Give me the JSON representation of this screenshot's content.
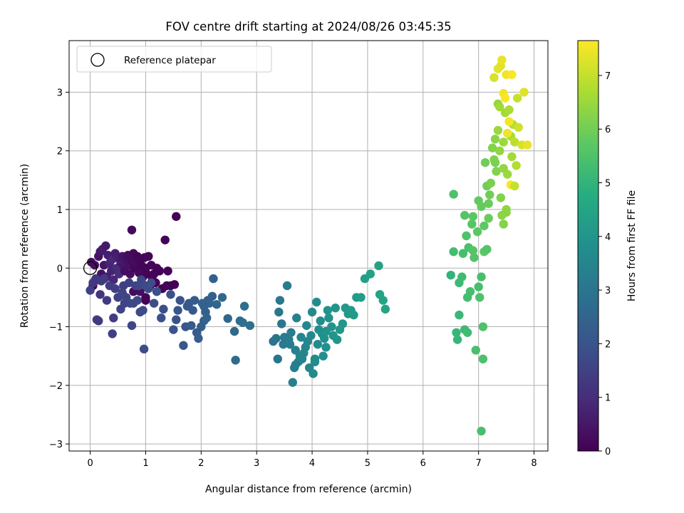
{
  "chart_data": {
    "type": "scatter",
    "title": "FOV centre drift starting at 2024/08/26 03:45:35",
    "xlabel": "Angular distance from reference (arcmin)",
    "ylabel": "Rotation from reference (arcmin)",
    "xlim": [
      -0.38,
      8.25
    ],
    "ylim": [
      -3.12,
      3.88
    ],
    "xticks": [
      0,
      1,
      2,
      3,
      4,
      5,
      6,
      7,
      8
    ],
    "yticks": [
      -3,
      -2,
      -1,
      0,
      1,
      2,
      3
    ],
    "grid": true,
    "colormap": "viridis",
    "legend": {
      "label": "Reference platepar",
      "placement": "top-left"
    },
    "reference_point": {
      "x": 0.0,
      "y": 0.0
    },
    "colorbar": {
      "label": "Hours from first FF file",
      "min": 0,
      "max": 7.65,
      "ticks": [
        0,
        1,
        2,
        3,
        4,
        5,
        6,
        7
      ]
    },
    "points": [
      [
        0.02,
        0.1,
        0.2
      ],
      [
        0.05,
        -0.3,
        0.1
      ],
      [
        0.08,
        0.05,
        0.3
      ],
      [
        0.12,
        -0.2,
        0.15
      ],
      [
        0.15,
        0.2,
        0.4
      ],
      [
        0.18,
        0.28,
        0.5
      ],
      [
        0.2,
        -0.1,
        0.35
      ],
      [
        0.22,
        0.32,
        0.6
      ],
      [
        0.25,
        0.05,
        0.45
      ],
      [
        0.28,
        0.38,
        0.55
      ],
      [
        0.3,
        -0.15,
        0.7
      ],
      [
        0.32,
        0.22,
        0.65
      ],
      [
        0.35,
        0.08,
        0.8
      ],
      [
        0.38,
        -0.05,
        0.75
      ],
      [
        0.4,
        0.15,
        0.9
      ],
      [
        0.42,
        -0.2,
        0.85
      ],
      [
        0.45,
        0.25,
        0.6
      ],
      [
        0.48,
        0.0,
        0.95
      ],
      [
        0.5,
        0.18,
        0.7
      ],
      [
        0.52,
        -0.1,
        1.0
      ],
      [
        0.55,
        0.1,
        0.55
      ],
      [
        0.58,
        0.2,
        0.45
      ],
      [
        0.6,
        0.05,
        0.5
      ],
      [
        0.62,
        -0.05,
        0.3
      ],
      [
        0.65,
        0.15,
        0.35
      ],
      [
        0.68,
        0.22,
        0.25
      ],
      [
        0.7,
        0.05,
        0.4
      ],
      [
        0.72,
        -0.1,
        0.3
      ],
      [
        0.75,
        0.12,
        0.2
      ],
      [
        0.78,
        0.25,
        0.2
      ],
      [
        0.8,
        0.0,
        0.15
      ],
      [
        0.82,
        0.1,
        0.25
      ],
      [
        0.85,
        0.2,
        0.1
      ],
      [
        0.88,
        -0.08,
        0.2
      ],
      [
        0.9,
        0.12,
        0.15
      ],
      [
        0.92,
        0.05,
        0.1
      ],
      [
        0.95,
        -0.15,
        0.15
      ],
      [
        0.98,
        0.18,
        0.05
      ],
      [
        1.0,
        0.0,
        0.1
      ],
      [
        1.02,
        -0.1,
        0.05
      ],
      [
        1.05,
        0.2,
        0.1
      ],
      [
        1.08,
        -0.3,
        0.05
      ],
      [
        1.1,
        0.05,
        0.08
      ],
      [
        1.12,
        -0.2,
        0.04
      ],
      [
        1.15,
        -0.1,
        0.1
      ],
      [
        1.18,
        -0.25,
        0.05
      ],
      [
        1.2,
        0.0,
        0.06
      ],
      [
        1.25,
        -0.05,
        0.05
      ],
      [
        1.3,
        -0.35,
        0.05
      ],
      [
        1.38,
        -0.3,
        0.03
      ],
      [
        1.35,
        0.48,
        0.1
      ],
      [
        1.4,
        -0.05,
        0.04
      ],
      [
        1.45,
        -0.3,
        0.05
      ],
      [
        1.52,
        -0.28,
        0.03
      ],
      [
        1.55,
        0.88,
        0.02
      ],
      [
        0.75,
        0.65,
        0.2
      ],
      [
        1.0,
        -0.5,
        0.1
      ],
      [
        1.0,
        -0.55,
        0.05
      ],
      [
        0.9,
        -0.4,
        0.3
      ],
      [
        0.78,
        -0.4,
        0.25
      ],
      [
        0.0,
        -0.38,
        1.5
      ],
      [
        0.05,
        -0.25,
        1.3
      ],
      [
        0.1,
        -0.18,
        1.25
      ],
      [
        0.12,
        -0.88,
        1.4
      ],
      [
        0.15,
        -0.9,
        1.3
      ],
      [
        0.18,
        -0.45,
        1.2
      ],
      [
        0.2,
        -0.22,
        1.35
      ],
      [
        0.25,
        -0.18,
        1.3
      ],
      [
        0.3,
        -0.55,
        1.35
      ],
      [
        0.35,
        -0.3,
        1.4
      ],
      [
        0.4,
        -1.12,
        1.5
      ],
      [
        0.42,
        -0.85,
        1.4
      ],
      [
        0.45,
        -0.35,
        1.45
      ],
      [
        0.5,
        -0.5,
        1.5
      ],
      [
        0.55,
        -0.7,
        1.55
      ],
      [
        0.58,
        -0.42,
        1.6
      ],
      [
        0.6,
        -0.3,
        1.45
      ],
      [
        0.62,
        -0.6,
        1.55
      ],
      [
        0.65,
        -0.5,
        1.6
      ],
      [
        0.7,
        -0.25,
        1.5
      ],
      [
        0.72,
        -0.6,
        1.65
      ],
      [
        0.75,
        -0.98,
        1.6
      ],
      [
        0.78,
        -0.6,
        1.7
      ],
      [
        0.82,
        -0.3,
        1.55
      ],
      [
        0.85,
        -0.55,
        1.7
      ],
      [
        0.88,
        -0.3,
        1.6
      ],
      [
        0.9,
        -0.75,
        1.7
      ],
      [
        0.92,
        -0.2,
        1.65
      ],
      [
        0.95,
        -0.72,
        1.75
      ],
      [
        0.97,
        -1.38,
        1.8
      ],
      [
        1.0,
        -0.3,
        1.7
      ],
      [
        1.05,
        -0.35,
        1.75
      ],
      [
        1.1,
        -0.25,
        1.8
      ],
      [
        1.15,
        -0.6,
        1.8
      ],
      [
        1.2,
        -0.4,
        1.85
      ],
      [
        1.28,
        -0.85,
        1.9
      ],
      [
        1.32,
        -0.7,
        1.85
      ],
      [
        1.45,
        -0.45,
        1.9
      ],
      [
        1.5,
        -1.05,
        2.0
      ],
      [
        1.55,
        -0.88,
        1.95
      ],
      [
        1.58,
        -0.72,
        2.05
      ],
      [
        1.62,
        -0.55,
        2.0
      ],
      [
        1.68,
        -1.32,
        2.1
      ],
      [
        1.72,
        -1.0,
        2.05
      ],
      [
        1.75,
        -0.65,
        2.15
      ],
      [
        1.78,
        -0.6,
        2.1
      ],
      [
        1.82,
        -0.98,
        2.2
      ],
      [
        1.85,
        -0.72,
        2.15
      ],
      [
        1.88,
        -0.55,
        2.2
      ],
      [
        1.92,
        -1.1,
        2.25
      ],
      [
        1.95,
        -1.2,
        2.3
      ],
      [
        2.0,
        -1.0,
        2.3
      ],
      [
        2.05,
        -0.9,
        2.35
      ],
      [
        2.08,
        -0.75,
        2.4
      ],
      [
        2.12,
        -0.55,
        2.35
      ],
      [
        2.15,
        -0.6,
        2.45
      ],
      [
        2.2,
        -0.48,
        2.4
      ],
      [
        2.22,
        -0.18,
        2.4
      ],
      [
        2.28,
        -0.62,
        2.5
      ],
      [
        2.38,
        -0.5,
        2.55
      ],
      [
        2.02,
        -0.6,
        2.45
      ],
      [
        2.48,
        -0.86,
        2.6
      ],
      [
        2.6,
        -1.08,
        2.65
      ],
      [
        2.62,
        -1.57,
        2.7
      ],
      [
        2.7,
        -0.9,
        2.75
      ],
      [
        2.78,
        -0.65,
        2.8
      ],
      [
        2.88,
        -0.98,
        2.85
      ],
      [
        2.75,
        -0.93,
        2.8
      ],
      [
        2.05,
        -0.65,
        2.4
      ],
      [
        2.1,
        -0.85,
        2.45
      ],
      [
        3.3,
        -1.25,
        2.95
      ],
      [
        3.35,
        -1.2,
        3.0
      ],
      [
        3.38,
        -1.55,
        3.0
      ],
      [
        3.4,
        -0.75,
        3.05
      ],
      [
        3.42,
        -0.55,
        3.1
      ],
      [
        3.45,
        -0.95,
        3.1
      ],
      [
        3.48,
        -1.3,
        3.15
      ],
      [
        3.5,
        -1.18,
        3.15
      ],
      [
        3.55,
        -0.3,
        3.2
      ],
      [
        3.58,
        -1.22,
        3.2
      ],
      [
        3.6,
        -1.3,
        3.25
      ],
      [
        3.62,
        -1.1,
        3.25
      ],
      [
        3.65,
        -1.95,
        3.3
      ],
      [
        3.68,
        -1.7,
        3.3
      ],
      [
        3.7,
        -1.4,
        3.35
      ],
      [
        3.72,
        -0.85,
        3.35
      ],
      [
        3.75,
        -1.6,
        3.4
      ],
      [
        3.78,
        -1.5,
        3.4
      ],
      [
        3.8,
        -1.18,
        3.45
      ],
      [
        3.82,
        -1.55,
        3.45
      ],
      [
        3.85,
        -1.45,
        3.5
      ],
      [
        3.88,
        -1.35,
        3.5
      ],
      [
        3.9,
        -0.98,
        3.55
      ],
      [
        3.95,
        -1.7,
        3.55
      ],
      [
        3.98,
        -1.15,
        3.6
      ],
      [
        4.0,
        -0.75,
        3.6
      ],
      [
        4.02,
        -1.8,
        3.65
      ],
      [
        4.05,
        -1.6,
        3.65
      ],
      [
        4.08,
        -0.58,
        3.7
      ],
      [
        4.1,
        -1.3,
        3.7
      ],
      [
        4.12,
        -1.05,
        3.75
      ],
      [
        4.15,
        -0.9,
        3.75
      ],
      [
        4.18,
        -1.12,
        3.8
      ],
      [
        4.2,
        -1.5,
        3.8
      ],
      [
        4.22,
        -1.2,
        3.85
      ],
      [
        4.25,
        -1.35,
        3.85
      ],
      [
        4.28,
        -0.72,
        3.9
      ],
      [
        4.3,
        -0.85,
        3.9
      ],
      [
        4.35,
        -1.0,
        3.95
      ],
      [
        4.38,
        -1.15,
        3.95
      ],
      [
        4.42,
        -0.68,
        4.0
      ],
      [
        4.45,
        -1.22,
        4.0
      ],
      [
        4.5,
        -1.05,
        4.05
      ],
      [
        4.55,
        -0.95,
        4.05
      ],
      [
        4.6,
        -0.68,
        4.1
      ],
      [
        4.65,
        -0.78,
        4.1
      ],
      [
        4.7,
        -0.72,
        4.15
      ],
      [
        4.75,
        -0.8,
        4.15
      ],
      [
        4.8,
        -0.5,
        4.2
      ],
      [
        4.88,
        -0.5,
        4.25
      ],
      [
        4.95,
        -0.18,
        4.3
      ],
      [
        5.05,
        -0.1,
        4.35
      ],
      [
        5.2,
        0.04,
        4.4
      ],
      [
        5.22,
        -0.45,
        4.45
      ],
      [
        5.28,
        -0.55,
        4.5
      ],
      [
        5.32,
        -0.7,
        4.5
      ],
      [
        4.25,
        -1.08,
        3.9
      ],
      [
        4.05,
        -1.55,
        3.7
      ],
      [
        3.92,
        -1.25,
        3.55
      ],
      [
        3.7,
        -1.65,
        3.3
      ],
      [
        6.5,
        -0.12,
        5.0
      ],
      [
        6.55,
        1.26,
        5.5
      ],
      [
        6.55,
        0.28,
        5.3
      ],
      [
        6.6,
        -1.1,
        5.1
      ],
      [
        6.62,
        -1.22,
        5.1
      ],
      [
        6.65,
        -0.25,
        5.2
      ],
      [
        6.65,
        -0.8,
        5.15
      ],
      [
        6.7,
        -0.15,
        5.25
      ],
      [
        6.72,
        0.25,
        5.35
      ],
      [
        6.75,
        -1.05,
        5.2
      ],
      [
        6.75,
        0.9,
        5.6
      ],
      [
        6.78,
        0.55,
        5.5
      ],
      [
        6.8,
        -0.5,
        5.3
      ],
      [
        6.8,
        -1.1,
        5.25
      ],
      [
        6.82,
        0.35,
        5.45
      ],
      [
        6.85,
        -0.4,
        5.35
      ],
      [
        6.88,
        0.75,
        5.6
      ],
      [
        6.9,
        0.88,
        5.7
      ],
      [
        6.92,
        0.18,
        5.55
      ],
      [
        6.95,
        -1.4,
        5.4
      ],
      [
        6.98,
        0.62,
        5.7
      ],
      [
        7.0,
        1.15,
        5.8
      ],
      [
        7.02,
        -0.5,
        5.5
      ],
      [
        7.05,
        1.05,
        5.85
      ],
      [
        7.05,
        -2.78,
        5.4
      ],
      [
        7.08,
        -1.0,
        5.5
      ],
      [
        7.08,
        -1.55,
        5.45
      ],
      [
        7.1,
        0.72,
        5.75
      ],
      [
        7.1,
        0.28,
        5.7
      ],
      [
        7.12,
        1.8,
        6.0
      ],
      [
        7.15,
        1.4,
        6.0
      ],
      [
        7.18,
        0.85,
        5.9
      ],
      [
        7.2,
        1.25,
        6.0
      ],
      [
        7.22,
        1.45,
        6.1
      ],
      [
        7.25,
        2.05,
        6.2
      ],
      [
        7.28,
        1.85,
        6.2
      ],
      [
        7.3,
        2.2,
        6.3
      ],
      [
        7.32,
        1.65,
        6.2
      ],
      [
        7.35,
        2.8,
        6.4
      ],
      [
        7.35,
        2.35,
        6.5
      ],
      [
        7.38,
        2.0,
        6.4
      ],
      [
        7.4,
        1.2,
        6.2
      ],
      [
        7.42,
        0.9,
        6.3
      ],
      [
        7.45,
        2.15,
        6.5
      ],
      [
        7.45,
        1.7,
        6.4
      ],
      [
        7.48,
        2.65,
        6.6
      ],
      [
        7.5,
        1.0,
        6.4
      ],
      [
        7.52,
        1.6,
        6.5
      ],
      [
        7.55,
        2.7,
        6.7
      ],
      [
        7.58,
        2.25,
        6.7
      ],
      [
        7.6,
        1.9,
        6.6
      ],
      [
        7.62,
        2.45,
        6.8
      ],
      [
        7.65,
        2.15,
        6.9
      ],
      [
        7.68,
        1.75,
        6.8
      ],
      [
        7.7,
        2.9,
        7.0
      ],
      [
        7.72,
        2.4,
        7.1
      ],
      [
        7.78,
        2.1,
        7.2
      ],
      [
        7.82,
        3.0,
        7.3
      ],
      [
        7.88,
        2.1,
        7.4
      ],
      [
        7.0,
        -0.32,
        5.35
      ],
      [
        7.05,
        -0.15,
        5.4
      ],
      [
        7.15,
        0.32,
        5.6
      ],
      [
        7.3,
        1.8,
        6.1
      ],
      [
        7.4,
        3.45,
        7.3
      ],
      [
        7.42,
        3.55,
        7.4
      ],
      [
        7.45,
        2.98,
        7.5
      ],
      [
        7.5,
        3.3,
        7.5
      ],
      [
        7.55,
        2.5,
        7.55
      ],
      [
        7.58,
        1.42,
        7.6
      ],
      [
        7.6,
        3.3,
        7.6
      ],
      [
        7.28,
        3.25,
        7.2
      ],
      [
        7.35,
        3.4,
        7.35
      ],
      [
        7.48,
        2.9,
        7.6
      ],
      [
        7.52,
        2.3,
        7.45
      ],
      [
        7.65,
        1.4,
        7.0
      ],
      [
        7.38,
        2.75,
        6.6
      ],
      [
        7.45,
        0.75,
        6.2
      ],
      [
        7.5,
        0.95,
        6.3
      ],
      [
        7.18,
        1.1,
        5.9
      ],
      [
        6.9,
        0.3,
        5.6
      ]
    ]
  }
}
